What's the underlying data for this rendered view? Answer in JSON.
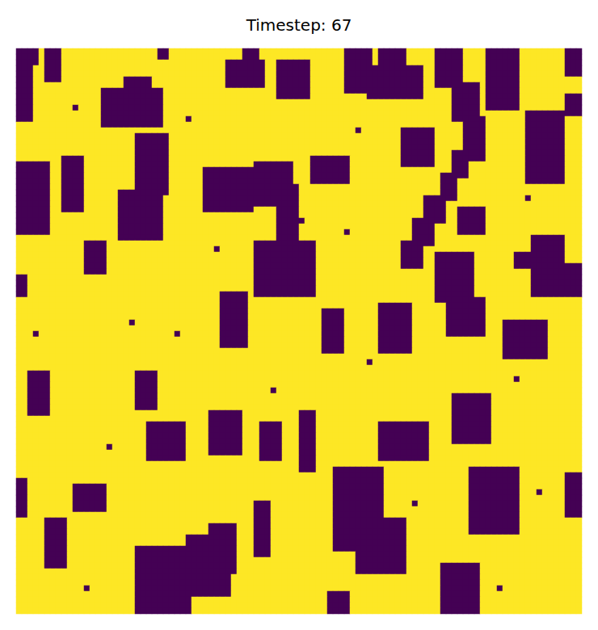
{
  "chart_data": {
    "type": "heatmap",
    "title": "Timestep: 67",
    "grid_size": [
      100,
      100
    ],
    "background_value": 1,
    "dark_value": 0,
    "color_range": [
      0,
      1
    ],
    "colors": [
      "#440154",
      "#fde725"
    ],
    "tick_labels": false,
    "dark_blocks": [
      [
        0,
        0,
        3,
        2
      ],
      [
        0,
        3,
        2,
        12
      ],
      [
        5,
        0,
        7,
        5
      ],
      [
        15,
        7,
        25,
        13
      ],
      [
        19,
        5,
        23,
        6
      ],
      [
        25,
        0,
        26,
        1
      ],
      [
        37,
        2,
        43,
        6
      ],
      [
        40,
        0,
        42,
        1
      ],
      [
        46,
        2,
        51,
        8
      ],
      [
        58,
        0,
        62,
        7
      ],
      [
        62,
        3,
        71,
        8
      ],
      [
        64,
        0,
        68,
        2
      ],
      [
        74,
        0,
        78,
        6
      ],
      [
        77,
        6,
        81,
        12
      ],
      [
        79,
        12,
        82,
        19
      ],
      [
        83,
        0,
        88,
        10
      ],
      [
        90,
        11,
        96,
        23
      ],
      [
        97,
        0,
        99,
        4
      ],
      [
        97,
        8,
        99,
        11
      ],
      [
        68,
        14,
        73,
        20
      ],
      [
        52,
        19,
        58,
        23
      ],
      [
        0,
        20,
        5,
        32
      ],
      [
        8,
        19,
        11,
        28
      ],
      [
        21,
        15,
        26,
        25
      ],
      [
        18,
        25,
        25,
        33
      ],
      [
        33,
        21,
        41,
        28
      ],
      [
        42,
        20,
        48,
        27
      ],
      [
        46,
        24,
        49,
        36
      ],
      [
        42,
        34,
        52,
        43
      ],
      [
        12,
        34,
        15,
        39
      ],
      [
        79,
        14,
        81,
        18
      ],
      [
        77,
        18,
        79,
        22
      ],
      [
        75,
        22,
        77,
        26
      ],
      [
        72,
        26,
        75,
        30
      ],
      [
        70,
        30,
        73,
        34
      ],
      [
        68,
        34,
        71,
        38
      ],
      [
        74,
        36,
        80,
        44
      ],
      [
        76,
        44,
        82,
        50
      ],
      [
        64,
        45,
        69,
        53
      ],
      [
        54,
        46,
        57,
        53
      ],
      [
        36,
        43,
        40,
        52
      ],
      [
        91,
        33,
        96,
        43
      ],
      [
        97,
        38,
        99,
        43
      ],
      [
        86,
        48,
        93,
        54
      ],
      [
        2,
        57,
        5,
        64
      ],
      [
        21,
        57,
        24,
        63
      ],
      [
        23,
        66,
        29,
        72
      ],
      [
        34,
        64,
        39,
        71
      ],
      [
        43,
        66,
        46,
        72
      ],
      [
        50,
        64,
        52,
        74
      ],
      [
        64,
        66,
        72,
        72
      ],
      [
        77,
        61,
        83,
        69
      ],
      [
        80,
        74,
        88,
        85
      ],
      [
        56,
        74,
        64,
        88
      ],
      [
        60,
        83,
        68,
        92
      ],
      [
        42,
        80,
        44,
        89
      ],
      [
        21,
        88,
        30,
        99
      ],
      [
        30,
        86,
        37,
        96
      ],
      [
        34,
        84,
        38,
        92
      ],
      [
        0,
        76,
        1,
        82
      ],
      [
        5,
        83,
        8,
        91
      ],
      [
        97,
        75,
        99,
        82
      ],
      [
        75,
        91,
        81,
        99
      ],
      [
        10,
        77,
        15,
        81
      ],
      [
        55,
        96,
        58,
        99
      ],
      [
        0,
        40,
        1,
        43
      ],
      [
        78,
        28,
        82,
        32
      ],
      [
        88,
        36,
        90,
        38
      ],
      [
        10,
        10,
        10,
        10
      ],
      [
        30,
        12,
        30,
        12
      ],
      [
        60,
        14,
        60,
        14
      ],
      [
        35,
        35,
        35,
        35
      ],
      [
        20,
        48,
        20,
        48
      ],
      [
        28,
        50,
        28,
        50
      ],
      [
        62,
        55,
        62,
        55
      ],
      [
        88,
        58,
        88,
        58
      ],
      [
        16,
        70,
        16,
        70
      ],
      [
        50,
        30,
        50,
        30
      ],
      [
        92,
        78,
        92,
        78
      ],
      [
        70,
        80,
        70,
        80
      ],
      [
        12,
        95,
        12,
        95
      ],
      [
        45,
        60,
        45,
        60
      ],
      [
        85,
        95,
        85,
        95
      ],
      [
        3,
        50,
        3,
        50
      ],
      [
        90,
        26,
        90,
        26
      ],
      [
        58,
        32,
        58,
        32
      ]
    ]
  }
}
